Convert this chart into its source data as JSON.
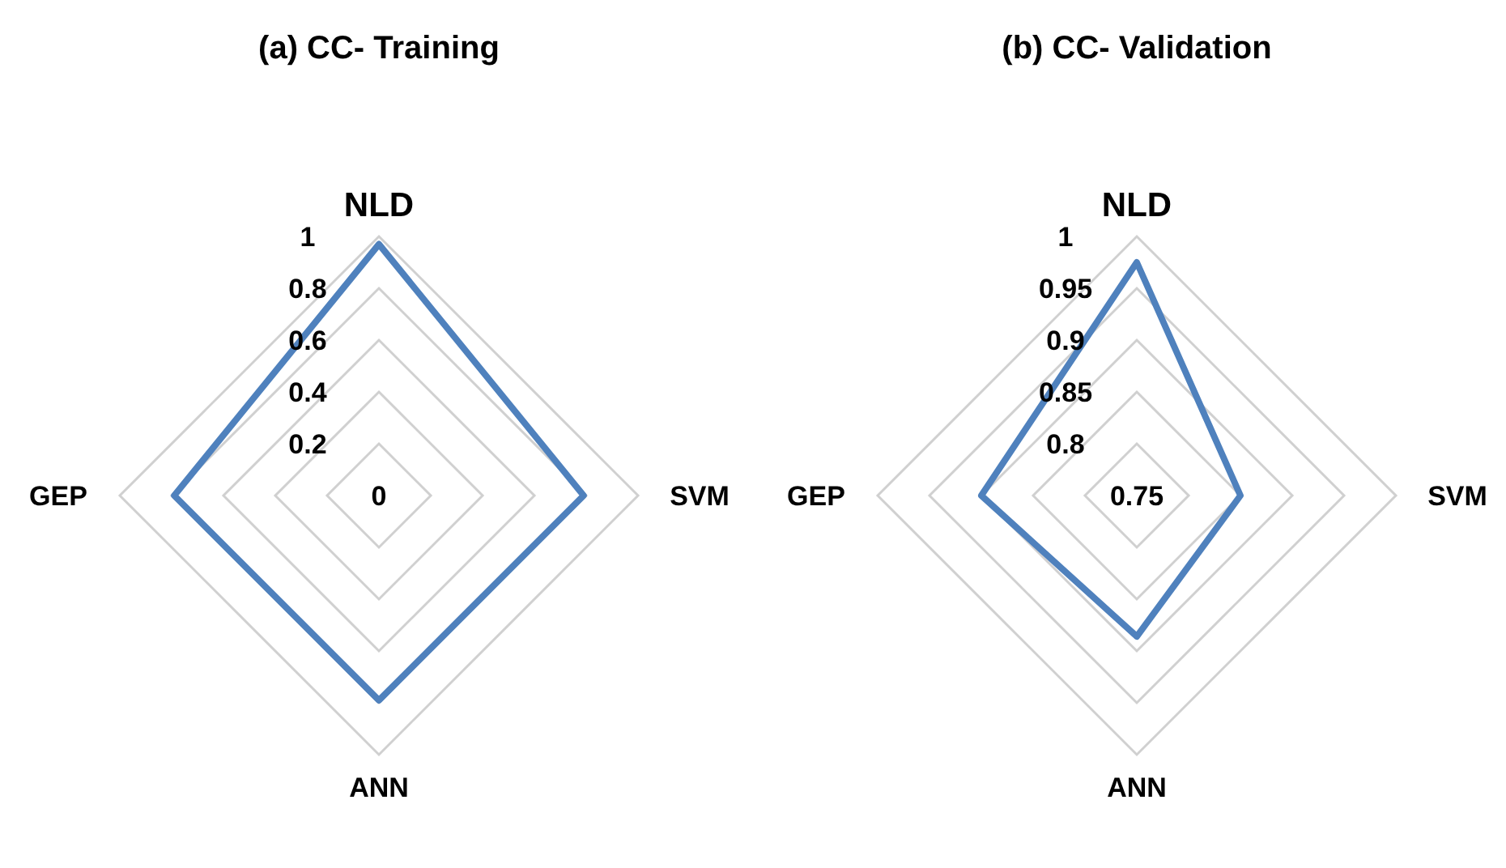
{
  "chart_data": [
    {
      "type": "radar",
      "title": "(a)  CC- Training",
      "categories": [
        "NLD",
        "SVM",
        "ANN",
        "GEP"
      ],
      "series": [
        {
          "color": "#4f81bd",
          "values": [
            0.97,
            0.79,
            0.79,
            0.79
          ]
        }
      ],
      "ylim": [
        0,
        1
      ],
      "yticks": [
        0,
        0.2,
        0.4,
        0.6,
        0.8,
        1
      ],
      "grid": true
    },
    {
      "type": "radar",
      "title": "(b) CC- Validation",
      "categories": [
        "NLD",
        "SVM",
        "ANN",
        "GEP"
      ],
      "series": [
        {
          "color": "#4f81bd",
          "values": [
            0.975,
            0.85,
            0.886,
            0.9
          ]
        }
      ],
      "ylim": [
        0.75,
        1
      ],
      "yticks": [
        0.75,
        0.8,
        0.85,
        0.9,
        0.95,
        1
      ],
      "grid": true
    }
  ]
}
